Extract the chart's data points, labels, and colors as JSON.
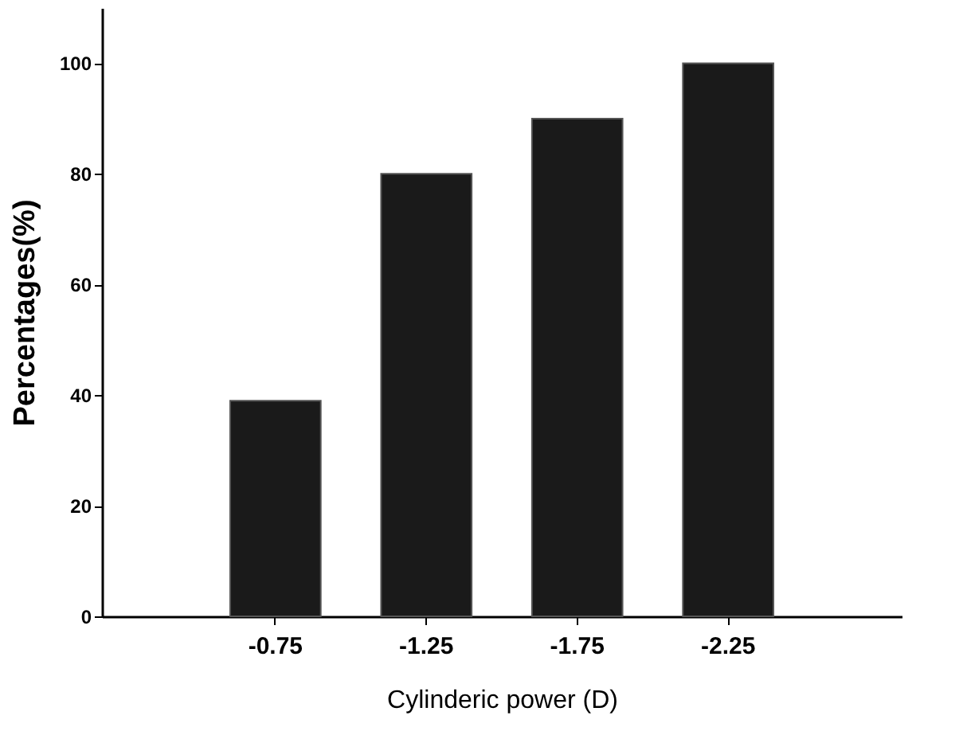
{
  "chart_data": {
    "type": "bar",
    "xlabel": "Cylinderic power (D)",
    "ylabel": "Percentages(%)",
    "categories": [
      "-0.75",
      "-1.25",
      "-1.75",
      "-2.25"
    ],
    "values": [
      39,
      80,
      90,
      100
    ],
    "color": "#1a1a1a",
    "ylim": [
      0,
      110
    ],
    "yticks": [
      0,
      20,
      40,
      60,
      80,
      100
    ],
    "grid": false
  }
}
